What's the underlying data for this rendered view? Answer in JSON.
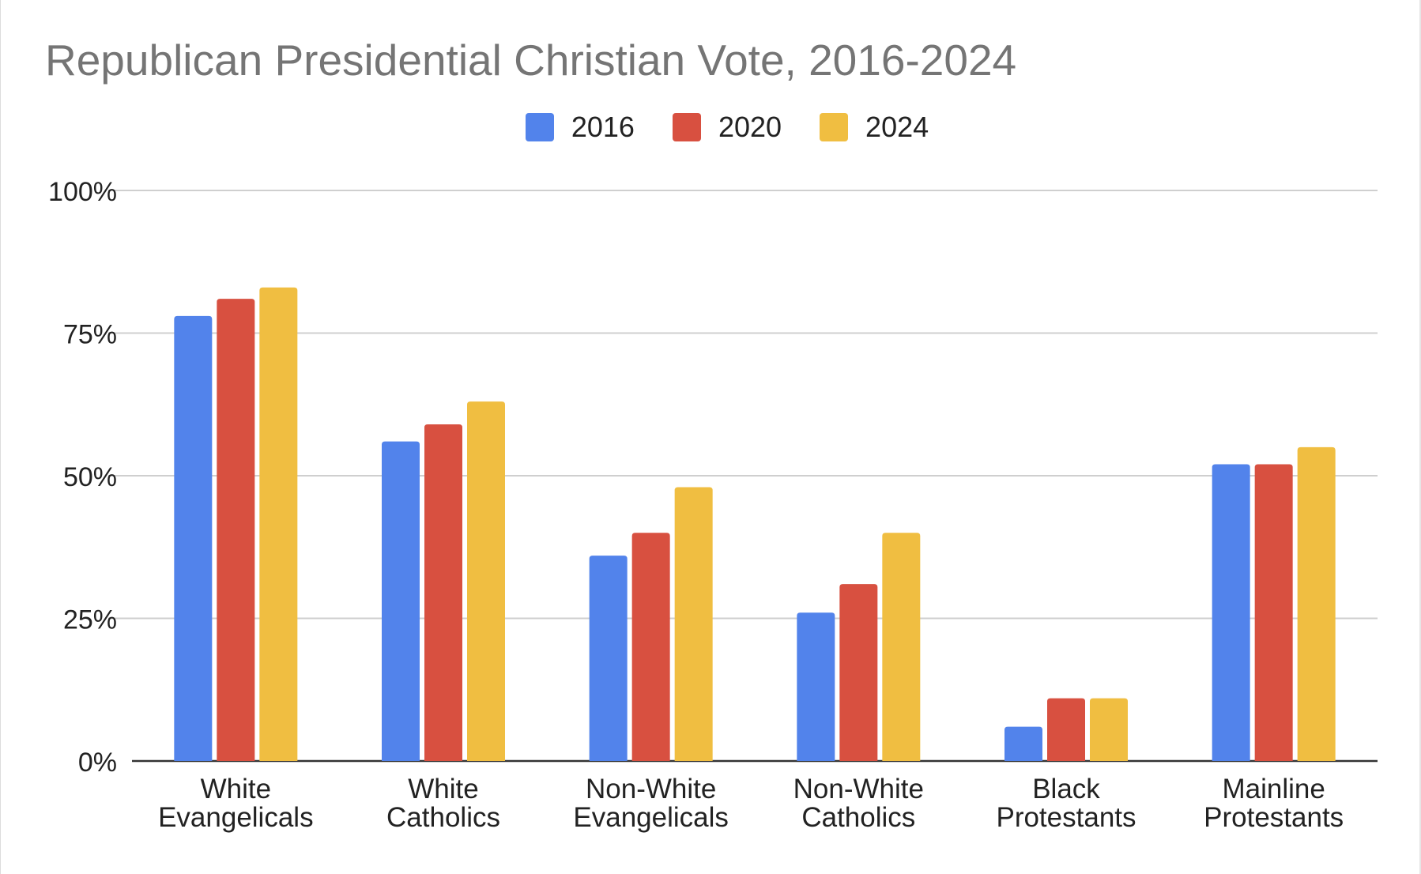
{
  "chart_data": {
    "type": "bar",
    "title": "Republican Presidential Christian Vote, 2016-2024",
    "xlabel": "",
    "ylabel": "",
    "ylim": [
      0,
      100
    ],
    "y_ticks": [
      0,
      25,
      50,
      75,
      100
    ],
    "y_tick_labels": [
      "0%",
      "25%",
      "50%",
      "75%",
      "100%"
    ],
    "grid": true,
    "legend_position": "top-center",
    "categories": [
      [
        "White",
        "Evangelicals"
      ],
      [
        "White",
        "Catholics"
      ],
      [
        "Non-White",
        "Evangelicals"
      ],
      [
        "Non-White",
        "Catholics"
      ],
      [
        "Black",
        "Protestants"
      ],
      [
        "Mainline",
        "Protestants"
      ]
    ],
    "series": [
      {
        "name": "2016",
        "color": "#5283EB",
        "values": [
          78,
          56,
          36,
          26,
          6,
          52
        ]
      },
      {
        "name": "2020",
        "color": "#D85040",
        "values": [
          81,
          59,
          40,
          31,
          11,
          52
        ]
      },
      {
        "name": "2024",
        "color": "#F0BE41",
        "values": [
          83,
          63,
          48,
          40,
          11,
          55
        ]
      }
    ]
  }
}
